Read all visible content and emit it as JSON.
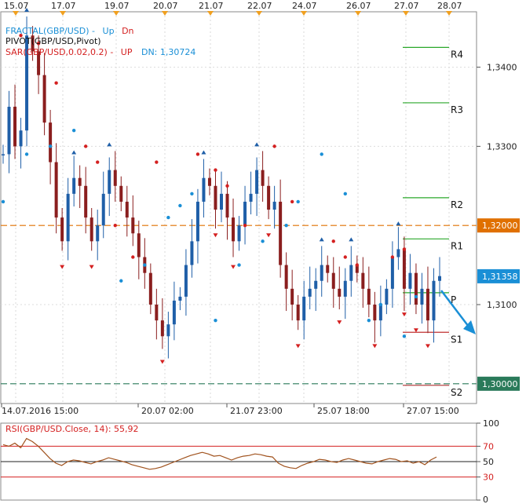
{
  "chart_data": [
    {
      "type": "candlestick",
      "symbol": "GBP/USD",
      "top_dates": [
        "15.07",
        "17.07",
        "19.07",
        "20.07",
        "21.07",
        "22.07",
        "24.07",
        "26.07",
        "27.07",
        "28.07"
      ],
      "bottom_dates": [
        "14.07.2016 15:00",
        "20.07 02:00",
        "21.07 23:00",
        "25.07 18:00",
        "27.07 15:00"
      ],
      "y_ticks": [
        "1,3400",
        "1,3300",
        "1,3100"
      ],
      "ylim": [
        1.2975,
        1.347
      ],
      "legend": {
        "fractal": {
          "text": "FRACTAL(GBP/USD) -",
          "up": "Up",
          "dn": "Dn"
        },
        "pivot": "PIVOT(GBP/USD,Pivot)",
        "sar": {
          "text": "SAR(GBP/USD,0.02,0.2) -",
          "up": "UP",
          "dn": "DN: 1,30724"
        }
      },
      "horizontal_lines": [
        {
          "label": "1,32000",
          "value": 1.32,
          "color": "#e07000",
          "style": "dashed"
        },
        {
          "label": "1,30000",
          "value": 1.3,
          "color": "#2a7a5a",
          "style": "dashed"
        }
      ],
      "current_price": {
        "label": "1,31358",
        "value": 1.31358,
        "color": "#1a8fd6"
      },
      "pivot_levels": [
        {
          "name": "R4",
          "value": 1.3425
        },
        {
          "name": "R3",
          "value": 1.3355
        },
        {
          "name": "R2",
          "value": 1.3235
        },
        {
          "name": "R1",
          "value": 1.3183
        },
        {
          "name": "P",
          "value": 1.3115
        },
        {
          "name": "S1",
          "value": 1.3065
        },
        {
          "name": "S2",
          "value": 1.2998
        }
      ],
      "close_series": [
        1.329,
        1.335,
        1.33,
        1.332,
        1.344,
        1.342,
        1.339,
        1.333,
        1.328,
        1.321,
        1.318,
        1.324,
        1.326,
        1.325,
        1.321,
        1.318,
        1.32,
        1.324,
        1.327,
        1.325,
        1.323,
        1.321,
        1.319,
        1.316,
        1.314,
        1.31,
        1.308,
        1.306,
        1.3075,
        1.3105,
        1.311,
        1.315,
        1.318,
        1.323,
        1.326,
        1.325,
        1.322,
        1.324,
        1.321,
        1.318,
        1.32,
        1.323,
        1.324,
        1.327,
        1.325,
        1.322,
        1.323,
        1.315,
        1.312,
        1.31,
        1.308,
        1.311,
        1.312,
        1.313,
        1.315,
        1.314,
        1.312,
        1.311,
        1.313,
        1.315,
        1.314,
        1.312,
        1.31,
        1.308,
        1.31,
        1.312,
        1.316,
        1.317,
        1.312,
        1.314,
        1.31,
        1.312,
        1.308,
        1.313,
        1.3136
      ],
      "sar_up_dots": [
        [
          0,
          1.323
        ],
        [
          4,
          1.329
        ],
        [
          8,
          1.33
        ],
        [
          12,
          1.332
        ],
        [
          20,
          1.313
        ],
        [
          24,
          1.315
        ],
        [
          28,
          1.321
        ],
        [
          30,
          1.3225
        ],
        [
          32,
          1.324
        ],
        [
          36,
          1.308
        ],
        [
          40,
          1.315
        ],
        [
          44,
          1.318
        ],
        [
          48,
          1.32
        ],
        [
          50,
          1.323
        ],
        [
          54,
          1.329
        ],
        [
          58,
          1.324
        ],
        [
          62,
          1.308
        ],
        [
          64,
          1.31
        ],
        [
          68,
          1.306
        ],
        [
          70,
          1.311
        ]
      ],
      "sar_dn_dots": [
        [
          3,
          1.344
        ],
        [
          6,
          1.343
        ],
        [
          9,
          1.338
        ],
        [
          14,
          1.33
        ],
        [
          16,
          1.328
        ],
        [
          19,
          1.32
        ],
        [
          22,
          1.316
        ],
        [
          26,
          1.328
        ],
        [
          33,
          1.329
        ],
        [
          36,
          1.327
        ],
        [
          38,
          1.325
        ],
        [
          41,
          1.32
        ],
        [
          46,
          1.33
        ],
        [
          49,
          1.323
        ],
        [
          56,
          1.318
        ],
        [
          58,
          1.316
        ],
        [
          60,
          1.315
        ],
        [
          66,
          1.316
        ],
        [
          68,
          1.317
        ]
      ]
    },
    {
      "type": "line",
      "title": "RSI(GBP/USD.Close, 14): 55,92",
      "y_ticks": [
        "100",
        "70",
        "50",
        "30",
        "0"
      ],
      "ylim": [
        0,
        100
      ],
      "levels": [
        70,
        50,
        30
      ],
      "values": [
        72,
        70,
        74,
        68,
        80,
        76,
        70,
        62,
        54,
        48,
        45,
        50,
        52,
        51,
        49,
        47,
        50,
        52,
        55,
        53,
        51,
        49,
        46,
        44,
        42,
        40,
        41,
        43,
        46,
        49,
        52,
        55,
        58,
        60,
        62,
        60,
        57,
        58,
        55,
        52,
        55,
        57,
        58,
        60,
        59,
        57,
        56,
        48,
        44,
        42,
        41,
        45,
        48,
        50,
        53,
        52,
        50,
        49,
        52,
        54,
        52,
        50,
        48,
        47,
        50,
        52,
        54,
        53,
        50,
        51,
        48,
        50,
        46,
        52,
        56
      ]
    }
  ]
}
